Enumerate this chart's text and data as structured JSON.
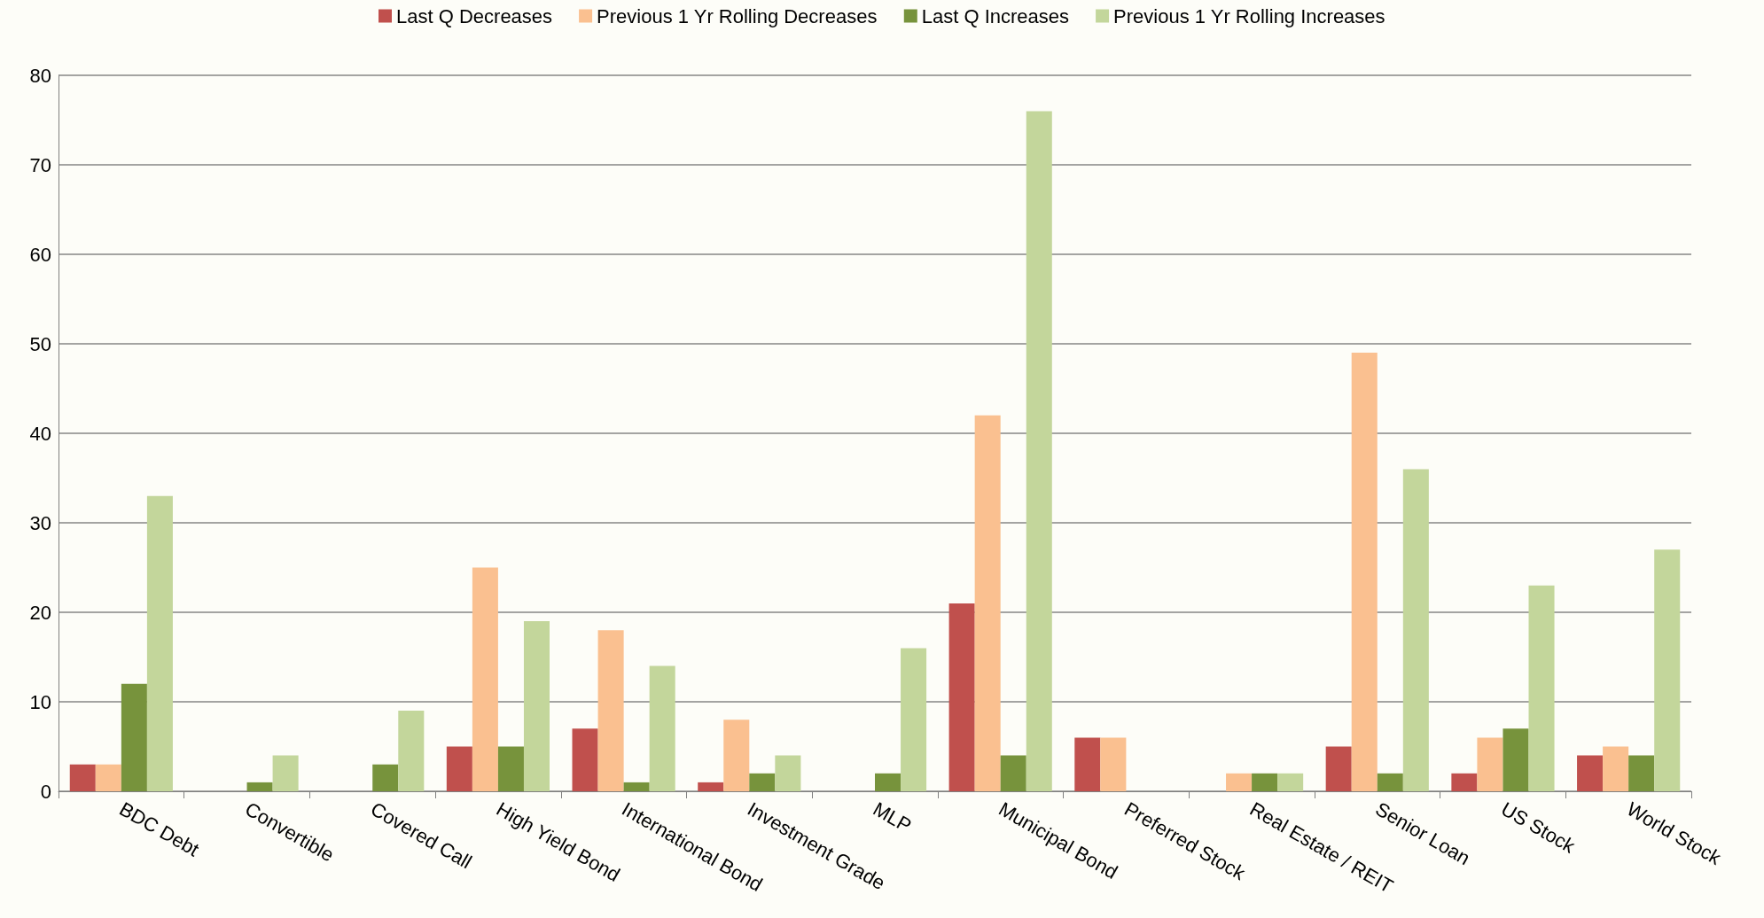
{
  "chart_data": {
    "type": "bar",
    "categories": [
      "BDC Debt",
      "Convertible",
      "Covered Call",
      "High Yield Bond",
      "International Bond",
      "Investment Grade",
      "MLP",
      "Municipal Bond",
      "Preferred Stock",
      "Real Estate / REIT",
      "Senior Loan",
      "US Stock",
      "World Stock"
    ],
    "series": [
      {
        "name": "Last Q Decreases",
        "color": "#c0504d",
        "values": [
          3,
          0,
          0,
          5,
          7,
          1,
          0,
          21,
          6,
          0,
          5,
          2,
          4
        ]
      },
      {
        "name": "Previous 1 Yr Rolling Decreases",
        "color": "#fac090",
        "values": [
          3,
          0,
          0,
          25,
          18,
          8,
          0,
          42,
          6,
          2,
          49,
          6,
          5
        ]
      },
      {
        "name": "Last Q Increases",
        "color": "#77933c",
        "values": [
          12,
          1,
          3,
          5,
          1,
          2,
          2,
          4,
          0,
          2,
          2,
          7,
          4
        ]
      },
      {
        "name": "Previous 1 Yr Rolling Increases",
        "color": "#c3d69b",
        "values": [
          33,
          4,
          9,
          19,
          14,
          4,
          16,
          76,
          0,
          2,
          36,
          23,
          27
        ]
      }
    ],
    "ylim": [
      0,
      80
    ],
    "yticks": [
      0,
      10,
      20,
      30,
      40,
      50,
      60,
      70,
      80
    ],
    "grid": "y",
    "legend": "top"
  }
}
